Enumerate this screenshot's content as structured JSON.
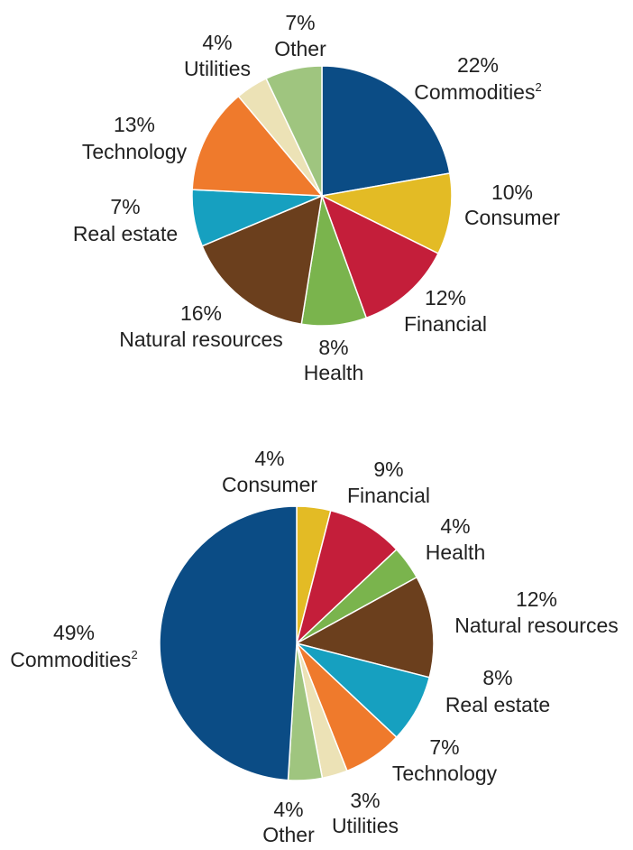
{
  "chart_data": [
    {
      "type": "pie",
      "title": "",
      "start": "12 o'clock",
      "direction": "clockwise",
      "slices": [
        {
          "name": "Commodities",
          "sup": "2",
          "value": 22,
          "pct": "22%",
          "color": "#0b4c85"
        },
        {
          "name": "Consumer",
          "value": 10,
          "pct": "10%",
          "color": "#e3bb25"
        },
        {
          "name": "Financial",
          "value": 12,
          "pct": "12%",
          "color": "#c41e3a"
        },
        {
          "name": "Health",
          "value": 8,
          "pct": "8%",
          "color": "#7ab44d"
        },
        {
          "name": "Natural resources",
          "value": 16,
          "pct": "16%",
          "color": "#6b3f1d"
        },
        {
          "name": "Real estate",
          "value": 7,
          "pct": "7%",
          "color": "#16a0c0"
        },
        {
          "name": "Technology",
          "value": 13,
          "pct": "13%",
          "color": "#ef7a2c"
        },
        {
          "name": "Utilities",
          "value": 4,
          "pct": "4%",
          "color": "#ece2b6"
        },
        {
          "name": "Other",
          "value": 7,
          "pct": "7%",
          "color": "#9fc57f"
        }
      ]
    },
    {
      "type": "pie",
      "title": "",
      "start": "12 o'clock",
      "direction": "clockwise",
      "slices": [
        {
          "name": "Consumer",
          "value": 4,
          "pct": "4%",
          "color": "#e3bb25"
        },
        {
          "name": "Financial",
          "value": 9,
          "pct": "9%",
          "color": "#c41e3a"
        },
        {
          "name": "Health",
          "value": 4,
          "pct": "4%",
          "color": "#7ab44d"
        },
        {
          "name": "Natural resources",
          "value": 12,
          "pct": "12%",
          "color": "#6b3f1d"
        },
        {
          "name": "Real estate",
          "value": 8,
          "pct": "8%",
          "color": "#16a0c0"
        },
        {
          "name": "Technology",
          "value": 7,
          "pct": "7%",
          "color": "#ef7a2c"
        },
        {
          "name": "Utilities",
          "value": 3,
          "pct": "3%",
          "color": "#ece2b6"
        },
        {
          "name": "Other",
          "value": 4,
          "pct": "4%",
          "color": "#9fc57f"
        },
        {
          "name": "Commodities",
          "sup": "2",
          "value": 49,
          "pct": "49%",
          "color": "#0b4c85"
        }
      ]
    }
  ]
}
